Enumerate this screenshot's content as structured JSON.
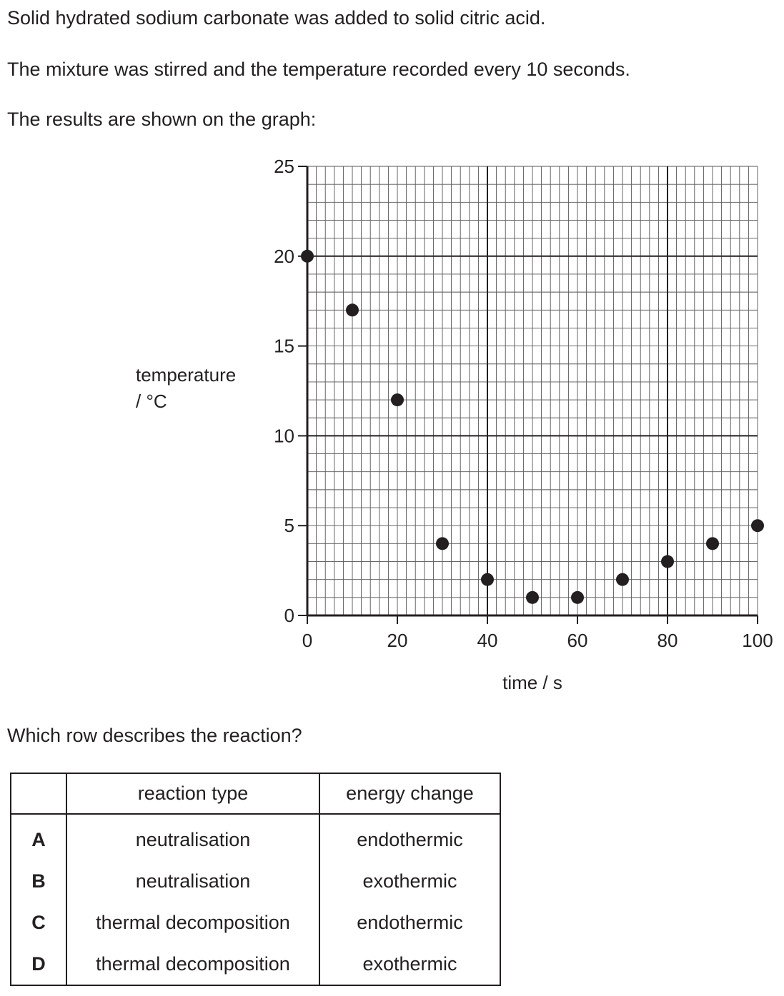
{
  "intro": {
    "line1": "Solid hydrated sodium carbonate was added to solid citric acid.",
    "line2": "The mixture was stirred and the temperature recorded every 10 seconds.",
    "line3": "The results are shown on the graph:"
  },
  "chart_data": {
    "type": "scatter",
    "x": [
      0,
      10,
      20,
      30,
      40,
      50,
      60,
      70,
      80,
      90,
      100
    ],
    "y": [
      20,
      17,
      12,
      4,
      2,
      1,
      1,
      2,
      3,
      4,
      5
    ],
    "xlabel": "time / s",
    "ylabel_line1": "temperature",
    "ylabel_line2": "/ °C",
    "xlim": [
      0,
      100
    ],
    "ylim": [
      0,
      25
    ],
    "x_ticks": [
      "0",
      "20",
      "40",
      "60",
      "80",
      "100"
    ],
    "y_ticks": [
      "0",
      "5",
      "10",
      "15",
      "20",
      "25"
    ],
    "grid": true,
    "marker_color": "#231f20"
  },
  "question": "Which row describes the reaction?",
  "table": {
    "headers": [
      "",
      "reaction type",
      "energy change"
    ],
    "rows": [
      {
        "letter": "A",
        "reaction_type": "neutralisation",
        "energy_change": "endothermic"
      },
      {
        "letter": "B",
        "reaction_type": "neutralisation",
        "energy_change": "exothermic"
      },
      {
        "letter": "C",
        "reaction_type": "thermal decomposition",
        "energy_change": "endothermic"
      },
      {
        "letter": "D",
        "reaction_type": "thermal decomposition",
        "energy_change": "exothermic"
      }
    ]
  }
}
